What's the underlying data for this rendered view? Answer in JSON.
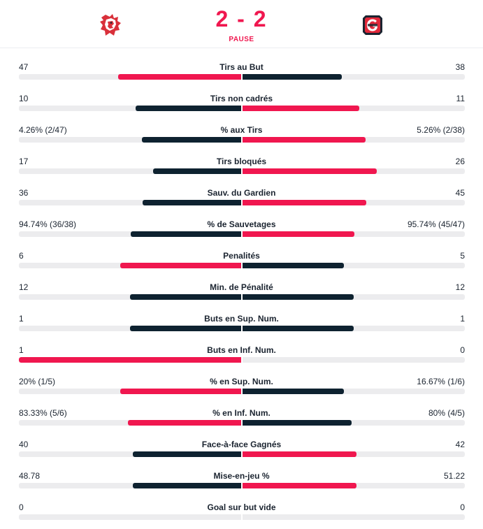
{
  "match": {
    "score": "2 - 2",
    "status": "PAUSE",
    "home_logo_icon": "lion-crest-icon",
    "away_logo_icon": "gottéron-g-crest-icon"
  },
  "colors": {
    "accent": "#f0174f",
    "dark": "#0e2230",
    "track": "#ececee"
  },
  "stats": [
    {
      "label": "Tirs au But",
      "home": "47",
      "away": "38",
      "home_share": 0.553,
      "away_share": 0.447,
      "home_leads": true
    },
    {
      "label": "Tirs non cadrés",
      "home": "10",
      "away": "11",
      "home_share": 0.476,
      "away_share": 0.524,
      "home_leads": false
    },
    {
      "label": "% aux Tirs",
      "home": "4.26% (2/47)",
      "away": "5.26% (2/38)",
      "home_share": 0.447,
      "away_share": 0.553,
      "home_leads": false
    },
    {
      "label": "Tirs bloqués",
      "home": "17",
      "away": "26",
      "home_share": 0.395,
      "away_share": 0.605,
      "home_leads": false
    },
    {
      "label": "Sauv. du Gardien",
      "home": "36",
      "away": "45",
      "home_share": 0.444,
      "away_share": 0.556,
      "home_leads": false
    },
    {
      "label": "% de Sauvetages",
      "home": "94.74% (36/38)",
      "away": "95.74% (45/47)",
      "home_share": 0.497,
      "away_share": 0.503,
      "home_leads": false
    },
    {
      "label": "Penalités",
      "home": "6",
      "away": "5",
      "home_share": 0.545,
      "away_share": 0.455,
      "home_leads": true
    },
    {
      "label": "Min. de Pénalité",
      "home": "12",
      "away": "12",
      "home_share": 0.5,
      "away_share": 0.5,
      "home_leads": null
    },
    {
      "label": "Buts en Sup. Num.",
      "home": "1",
      "away": "1",
      "home_share": 0.5,
      "away_share": 0.5,
      "home_leads": null
    },
    {
      "label": "Buts en Inf. Num.",
      "home": "1",
      "away": "0",
      "home_share": 1.0,
      "away_share": 0.0,
      "home_leads": true
    },
    {
      "label": "% en Sup. Num.",
      "home": "20% (1/5)",
      "away": "16.67% (1/6)",
      "home_share": 0.545,
      "away_share": 0.455,
      "home_leads": true
    },
    {
      "label": "% en Inf. Num.",
      "home": "83.33% (5/6)",
      "away": "80% (4/5)",
      "home_share": 0.51,
      "away_share": 0.49,
      "home_leads": true
    },
    {
      "label": "Face-à-face Gagnés",
      "home": "40",
      "away": "42",
      "home_share": 0.488,
      "away_share": 0.512,
      "home_leads": false
    },
    {
      "label": "Mise-en-jeu %",
      "home": "48.78",
      "away": "51.22",
      "home_share": 0.488,
      "away_share": 0.512,
      "home_leads": false
    },
    {
      "label": "Goal sur but vide",
      "home": "0",
      "away": "0",
      "home_share": 0,
      "away_share": 0,
      "home_leads": null
    }
  ]
}
